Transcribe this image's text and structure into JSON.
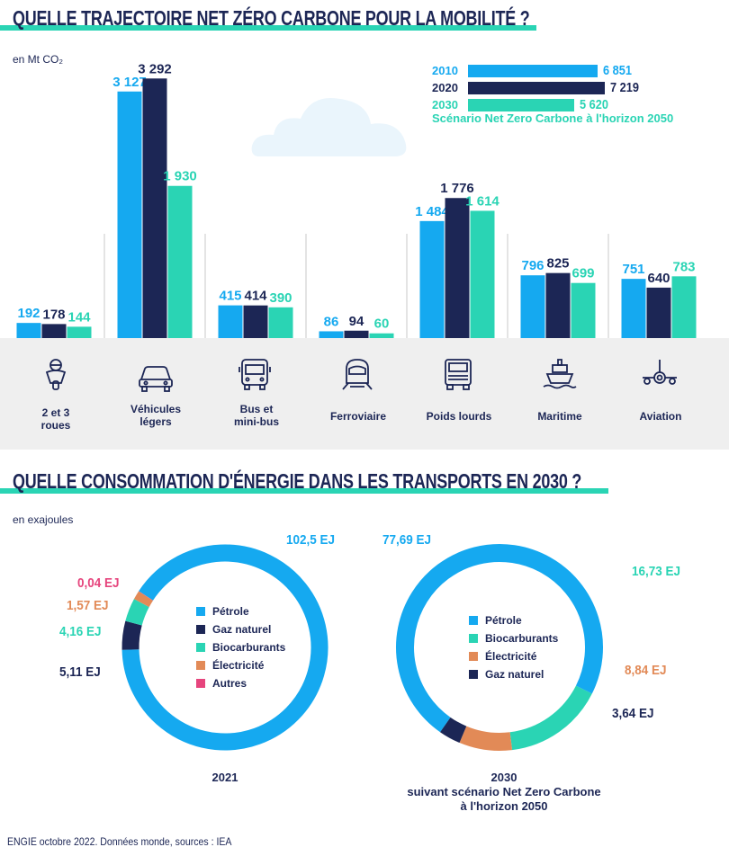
{
  "colors": {
    "c2010": "#15a9f0",
    "c2020": "#1c2655",
    "c2030": "#2ad4b4",
    "petrole": "#15a9f0",
    "gaz": "#1c2655",
    "bio": "#2ad4b4",
    "elec": "#e28a57",
    "autres": "#e6457d"
  },
  "section1": {
    "title": "QUELLE TRAJECTOIRE NET ZÉRO CARBONE POUR LA MOBILITÉ ?",
    "unit": "en Mt CO₂",
    "legend": [
      {
        "year": "2010",
        "value": "6 851"
      },
      {
        "year": "2020",
        "value": "7 219"
      },
      {
        "year": "2030",
        "value": "5 620"
      }
    ],
    "scenario_note": "Scénario Net Zero Carbone à l'horizon 2050"
  },
  "section2": {
    "title": "QUELLE CONSOMMATION D'ÉNERGIE DANS LES TRANSPORTS EN 2030 ?",
    "unit": "en exajoules"
  },
  "source": "ENGIE octobre 2022. Données monde, sources : IEA",
  "chart_data": [
    {
      "type": "bar",
      "title": "QUELLE TRAJECTOIRE NET ZÉRO CARBONE POUR LA MOBILITÉ ?",
      "ylabel": "en Mt CO₂",
      "categories": [
        "2 et 3 roues",
        "Véhicules légers",
        "Bus et mini-bus",
        "Ferroviaire",
        "Poids lourds",
        "Maritime",
        "Aviation"
      ],
      "series": [
        {
          "name": "2010",
          "values": [
            192,
            3127,
            415,
            86,
            1484,
            796,
            751
          ],
          "labels": [
            "192",
            "3 127",
            "415",
            "86",
            "1 484",
            "796",
            "751"
          ]
        },
        {
          "name": "2020",
          "values": [
            178,
            3292,
            414,
            94,
            1776,
            825,
            640
          ],
          "labels": [
            "178",
            "3 292",
            "414",
            "94",
            "1 776",
            "825",
            "640"
          ]
        },
        {
          "name": "2030",
          "values": [
            144,
            1930,
            390,
            60,
            1614,
            699,
            783
          ],
          "labels": [
            "144",
            "1 930",
            "390",
            "60",
            "1 614",
            "699",
            "783"
          ]
        }
      ],
      "totals": {
        "2010": 6851,
        "2020": 7219,
        "2030": 5620
      }
    },
    {
      "type": "pie",
      "variant": "donut",
      "caption": "2021",
      "slices": [
        {
          "label": "Pétrole",
          "value": 102.5,
          "text": "102,5 EJ"
        },
        {
          "label": "Gaz naturel",
          "value": 5.11,
          "text": "5,11 EJ"
        },
        {
          "label": "Biocarburants",
          "value": 4.16,
          "text": "4,16 EJ"
        },
        {
          "label": "Électricité",
          "value": 1.57,
          "text": "1,57 EJ"
        },
        {
          "label": "Autres",
          "value": 0.04,
          "text": "0,04 EJ"
        }
      ]
    },
    {
      "type": "pie",
      "variant": "donut",
      "caption_year": "2030",
      "caption_line2": "suivant scénario Net Zero Carbone",
      "caption_line3": "à l'horizon 2050",
      "slices": [
        {
          "label": "Pétrole",
          "value": 77.69,
          "text": "77,69 EJ"
        },
        {
          "label": "Biocarburants",
          "value": 16.73,
          "text": "16,73 EJ"
        },
        {
          "label": "Électricité",
          "value": 8.84,
          "text": "8,84 EJ"
        },
        {
          "label": "Gaz naturel",
          "value": 3.64,
          "text": "3,64 EJ"
        }
      ]
    }
  ],
  "category_labels": [
    {
      "l1": "2 et 3",
      "l2": "roues",
      "icon": "scooter-icon"
    },
    {
      "l1": "Véhicules",
      "l2": "légers",
      "icon": "car-icon"
    },
    {
      "l1": "Bus et",
      "l2": "mini-bus",
      "icon": "bus-icon"
    },
    {
      "l1": "Ferroviaire",
      "l2": "",
      "icon": "train-icon"
    },
    {
      "l1": "Poids lourds",
      "l2": "",
      "icon": "truck-icon"
    },
    {
      "l1": "Maritime",
      "l2": "",
      "icon": "ship-icon"
    },
    {
      "l1": "Aviation",
      "l2": "",
      "icon": "plane-icon"
    }
  ]
}
